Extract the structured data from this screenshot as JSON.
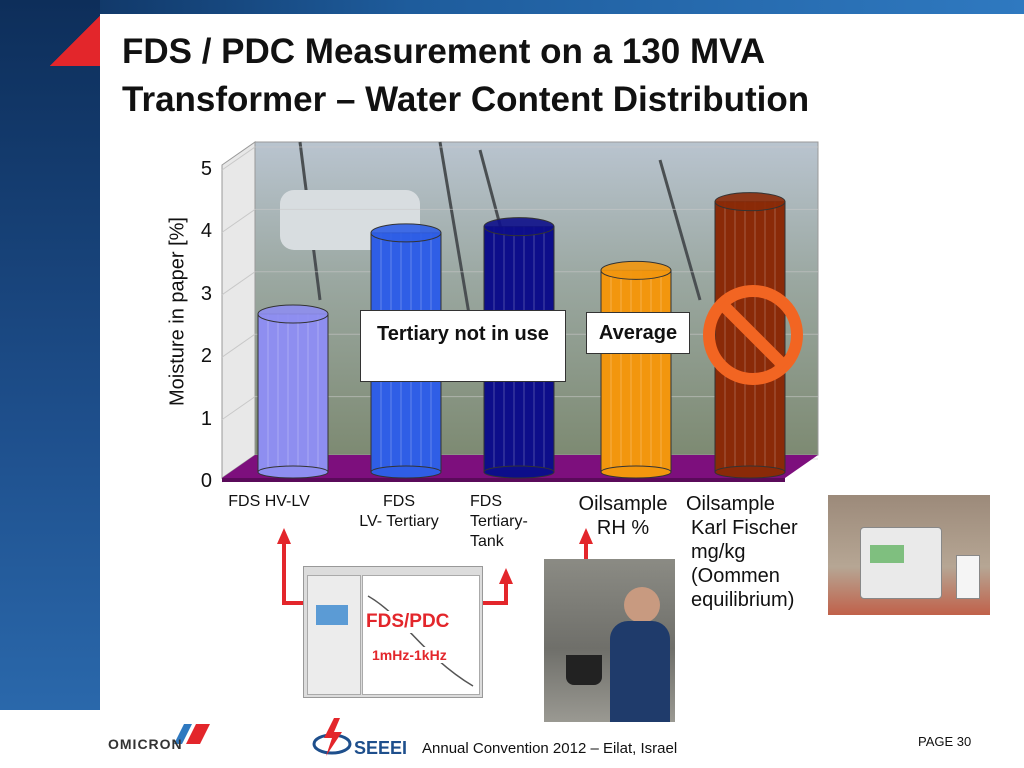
{
  "slide": {
    "title_line1": "FDS / PDC Measurement on a 130 MVA",
    "title_line2": "Transformer – Water Content Distribution",
    "footer": "Annual Convention 2012 – Eilat, Israel",
    "page": "PAGE 30",
    "logo_left": "OMICRON",
    "logo_right": "SEEEI"
  },
  "annotations": {
    "tertiary": "Tertiary not in use",
    "average": "Average",
    "fdspdc": "FDS/PDC",
    "freq": "1mHz-1kHz"
  },
  "colors": {
    "bar1": "#8e8ef0",
    "bar2": "#2f5ee6",
    "bar3": "#0d0e8a",
    "bar4": "#f2960e",
    "bar5": "#8a2a08",
    "floor": "#7d0f7d",
    "arrow": "#e3262b",
    "prohibit": "#f26522"
  },
  "chart_data": {
    "type": "bar",
    "categories": [
      "FDS HV-LV",
      "FDS LV- Tertiary",
      "FDS Tertiary-Tank",
      "Oilsample RH %",
      "Oilsample Karl Fischer mg/kg (Oommen equilibrium)"
    ],
    "category_lines": [
      [
        "FDS HV-LV"
      ],
      [
        "FDS",
        "LV- Tertiary"
      ],
      [
        "FDS",
        "Tertiary-",
        "Tank"
      ],
      [
        "Oilsample",
        "RH %"
      ],
      [
        "Oilsample",
        "Karl Fischer",
        "mg/kg",
        "(Oommen",
        "equilibrium)"
      ]
    ],
    "values": [
      2.5,
      3.8,
      3.9,
      3.2,
      4.3
    ],
    "ylabel": "Moisture in paper [%]",
    "ylim": [
      0,
      5
    ],
    "yticks": [
      "0",
      "1",
      "2",
      "3",
      "4",
      "5"
    ]
  }
}
